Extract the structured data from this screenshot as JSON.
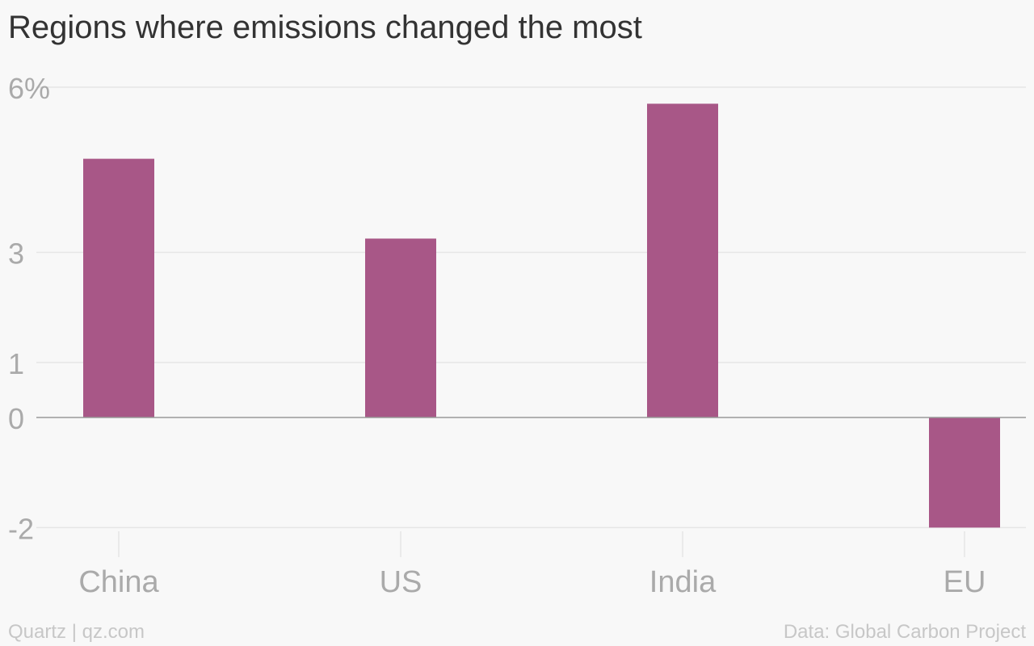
{
  "chart_data": {
    "type": "bar",
    "title": "Regions where emissions changed the most",
    "categories": [
      "China",
      "US",
      "India",
      "EU"
    ],
    "values": [
      4.7,
      3.25,
      5.7,
      -2.0
    ],
    "yticks": [
      {
        "value": 6,
        "label": "6%"
      },
      {
        "value": 3,
        "label": "3"
      },
      {
        "value": 1,
        "label": "1"
      },
      {
        "value": 0,
        "label": "0"
      },
      {
        "value": -2,
        "label": "-2"
      }
    ],
    "ylim": [
      -2,
      6
    ],
    "grid": true,
    "colors": {
      "bar": "#a85787",
      "grid": "#e6e6e6",
      "zero_line": "#999999"
    }
  },
  "footer": {
    "credit": "Quartz | qz.com",
    "source": "Data: Global Carbon Project"
  }
}
